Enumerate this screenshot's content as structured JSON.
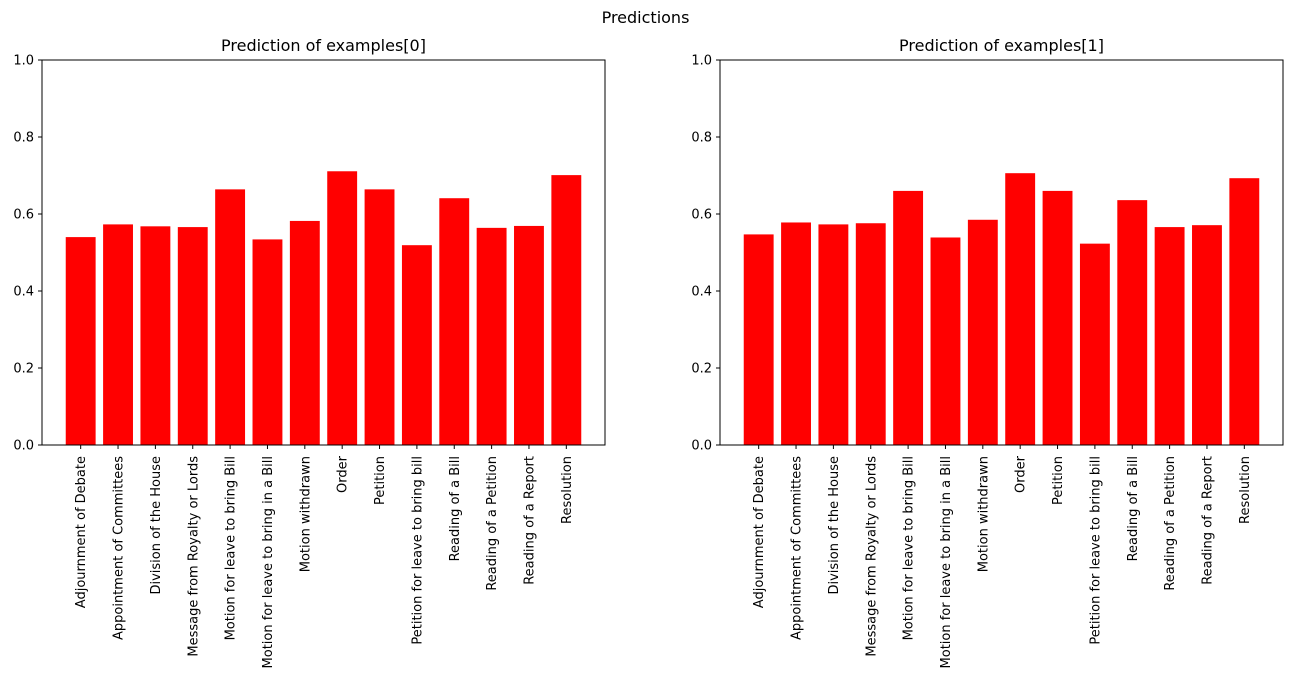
{
  "figure": {
    "suptitle": "Predictions"
  },
  "colors": {
    "bar": "#ff0000",
    "axis": "#000000",
    "background": "#ffffff"
  },
  "chart_data": [
    {
      "type": "bar",
      "title": "Prediction of examples[0]",
      "xlabel": "",
      "ylabel": "",
      "ylim": [
        0,
        1
      ],
      "yticks": [
        "0.0",
        "0.2",
        "0.4",
        "0.6",
        "0.8",
        "1.0"
      ],
      "grid": false,
      "categories": [
        "Adjournment of Debate",
        "Appointment of Committees",
        "Division of the House",
        "Message from Royalty or Lords",
        "Motion for leave to bring Bill",
        "Motion for leave to bring in a Bill",
        "Motion withdrawn",
        "Order",
        "Petition",
        "Petition for leave to bring bill",
        "Reading of a Bill",
        "Reading of a Petition",
        "Reading of a Report",
        "Resolution"
      ],
      "values": [
        0.54,
        0.573,
        0.568,
        0.566,
        0.664,
        0.534,
        0.582,
        0.711,
        0.664,
        0.519,
        0.641,
        0.564,
        0.569,
        0.701
      ]
    },
    {
      "type": "bar",
      "title": "Prediction of examples[1]",
      "xlabel": "",
      "ylabel": "",
      "ylim": [
        0,
        1
      ],
      "yticks": [
        "0.0",
        "0.2",
        "0.4",
        "0.6",
        "0.8",
        "1.0"
      ],
      "grid": false,
      "categories": [
        "Adjournment of Debate",
        "Appointment of Committees",
        "Division of the House",
        "Message from Royalty or Lords",
        "Motion for leave to bring Bill",
        "Motion for leave to bring in a Bill",
        "Motion withdrawn",
        "Order",
        "Petition",
        "Petition for leave to bring bill",
        "Reading of a Bill",
        "Reading of a Petition",
        "Reading of a Report",
        "Resolution"
      ],
      "values": [
        0.547,
        0.578,
        0.573,
        0.576,
        0.66,
        0.539,
        0.585,
        0.706,
        0.66,
        0.523,
        0.636,
        0.566,
        0.571,
        0.693
      ]
    }
  ]
}
